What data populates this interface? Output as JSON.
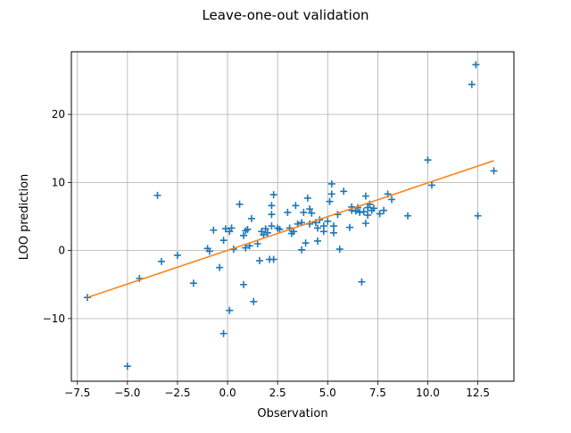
{
  "chart_data": {
    "type": "scatter",
    "title": "Leave-one-out validation",
    "xlabel": "Observation",
    "ylabel": "LOO prediction",
    "xlim": [
      -7.8,
      14.3
    ],
    "ylim": [
      -19.2,
      29.2
    ],
    "xticks": [
      -7.5,
      -5.0,
      -2.5,
      0.0,
      2.5,
      5.0,
      7.5,
      10.0,
      12.5
    ],
    "xtick_labels": [
      "−7.5",
      "−5.0",
      "−2.5",
      "0.0",
      "2.5",
      "5.0",
      "7.5",
      "10.0",
      "12.5"
    ],
    "yticks": [
      -10,
      0,
      10,
      20
    ],
    "ytick_labels": [
      "−10",
      "0",
      "10",
      "20"
    ],
    "grid": true,
    "marker": "plus",
    "colors": {
      "points": "#1f77b4",
      "fit": "#ff7f0e",
      "grid": "#b0b0b0"
    },
    "series": [
      {
        "kind": "scatter",
        "points": [
          [
            -7.0,
            -6.9
          ],
          [
            -5.0,
            -17.0
          ],
          [
            -4.4,
            -4.1
          ],
          [
            -3.5,
            8.1
          ],
          [
            -3.3,
            -1.6
          ],
          [
            -2.5,
            -0.7
          ],
          [
            -1.7,
            -4.8
          ],
          [
            -1.0,
            0.3
          ],
          [
            -0.9,
            -0.1
          ],
          [
            -0.7,
            3.0
          ],
          [
            -0.4,
            -2.5
          ],
          [
            -0.2,
            -12.2
          ],
          [
            -0.2,
            1.5
          ],
          [
            -0.1,
            3.2
          ],
          [
            0.1,
            2.8
          ],
          [
            0.1,
            -8.8
          ],
          [
            0.2,
            3.3
          ],
          [
            0.3,
            0.2
          ],
          [
            0.6,
            6.8
          ],
          [
            0.8,
            2.2
          ],
          [
            0.8,
            -5.0
          ],
          [
            0.9,
            2.9
          ],
          [
            0.9,
            0.4
          ],
          [
            1.0,
            3.1
          ],
          [
            1.1,
            0.7
          ],
          [
            1.2,
            4.7
          ],
          [
            1.3,
            -7.5
          ],
          [
            1.5,
            1.0
          ],
          [
            1.6,
            -1.5
          ],
          [
            1.7,
            2.8
          ],
          [
            1.8,
            2.3
          ],
          [
            1.9,
            3.2
          ],
          [
            2.0,
            2.6
          ],
          [
            2.1,
            -1.3
          ],
          [
            2.2,
            3.6
          ],
          [
            2.2,
            5.3
          ],
          [
            2.2,
            6.6
          ],
          [
            2.3,
            8.2
          ],
          [
            2.3,
            -1.3
          ],
          [
            2.5,
            3.3
          ],
          [
            2.6,
            3.1
          ],
          [
            3.0,
            5.6
          ],
          [
            3.1,
            3.3
          ],
          [
            3.2,
            2.5
          ],
          [
            3.3,
            2.8
          ],
          [
            3.4,
            6.6
          ],
          [
            3.5,
            3.9
          ],
          [
            3.7,
            0.1
          ],
          [
            3.7,
            4.1
          ],
          [
            3.8,
            5.6
          ],
          [
            3.9,
            1.1
          ],
          [
            4.0,
            7.7
          ],
          [
            4.1,
            6.1
          ],
          [
            4.1,
            3.9
          ],
          [
            4.2,
            5.5
          ],
          [
            4.4,
            4.1
          ],
          [
            4.5,
            3.3
          ],
          [
            4.5,
            1.4
          ],
          [
            4.6,
            4.5
          ],
          [
            4.8,
            2.8
          ],
          [
            4.8,
            3.6
          ],
          [
            5.0,
            4.3
          ],
          [
            5.1,
            7.2
          ],
          [
            5.2,
            9.8
          ],
          [
            5.2,
            8.3
          ],
          [
            5.3,
            3.6
          ],
          [
            5.3,
            2.6
          ],
          [
            5.5,
            5.3
          ],
          [
            5.6,
            0.2
          ],
          [
            5.8,
            8.7
          ],
          [
            6.1,
            3.4
          ],
          [
            6.2,
            6.4
          ],
          [
            6.2,
            5.9
          ],
          [
            6.4,
            5.8
          ],
          [
            6.5,
            6.3
          ],
          [
            6.6,
            5.6
          ],
          [
            6.7,
            -4.6
          ],
          [
            6.8,
            5.7
          ],
          [
            6.9,
            4.0
          ],
          [
            6.9,
            8.0
          ],
          [
            7.0,
            6.3
          ],
          [
            7.0,
            5.2
          ],
          [
            7.1,
            6.8
          ],
          [
            7.2,
            5.9
          ],
          [
            7.3,
            6.2
          ],
          [
            7.6,
            5.4
          ],
          [
            7.8,
            5.9
          ],
          [
            8.0,
            8.3
          ],
          [
            8.2,
            7.5
          ],
          [
            9.0,
            5.1
          ],
          [
            10.0,
            13.3
          ],
          [
            10.2,
            9.6
          ],
          [
            12.2,
            24.4
          ],
          [
            12.4,
            27.3
          ],
          [
            12.5,
            5.1
          ],
          [
            13.3,
            11.7
          ]
        ]
      },
      {
        "kind": "line",
        "points": [
          [
            -7.0,
            -6.9
          ],
          [
            13.3,
            13.2
          ]
        ]
      }
    ]
  }
}
